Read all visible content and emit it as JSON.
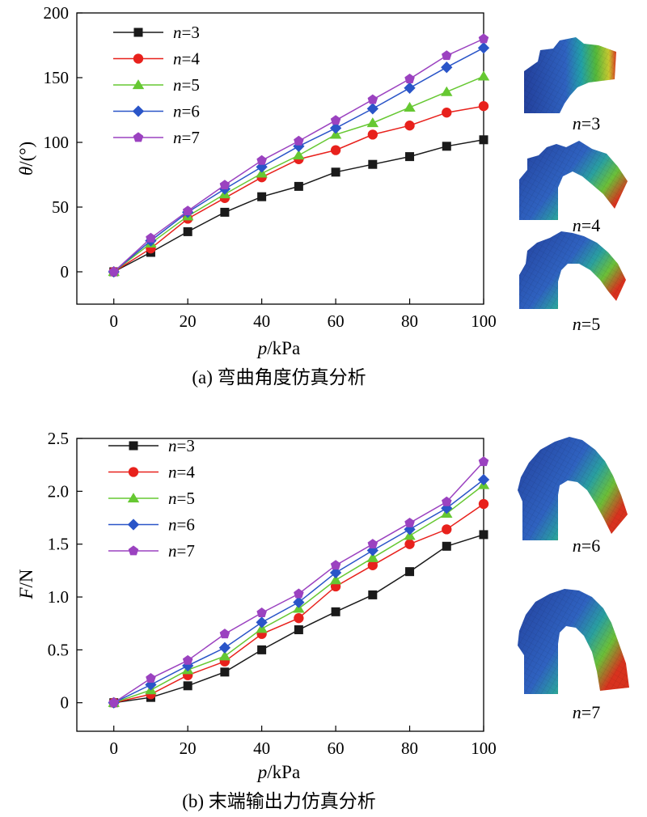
{
  "series_styles": [
    {
      "color": "#1a1a1a",
      "marker": "square"
    },
    {
      "color": "#e8211c",
      "marker": "circle"
    },
    {
      "color": "#66c832",
      "marker": "triangle"
    },
    {
      "color": "#2a55c8",
      "marker": "diamond"
    },
    {
      "color": "#9b42c0",
      "marker": "pentagon"
    }
  ],
  "chart_data": [
    {
      "type": "line",
      "caption": "(a) 弯曲角度仿真分析",
      "xlabel": {
        "italic": "p",
        "rest": "/kPa"
      },
      "ylabel": {
        "italic": "θ",
        "rest": "/(°)"
      },
      "xlim": [
        -10,
        100
      ],
      "ylim": [
        -25,
        200
      ],
      "xticks": [
        0,
        20,
        40,
        60,
        80,
        100
      ],
      "xtick_labels": [
        "0",
        "20",
        "40",
        "60",
        "80",
        "100"
      ],
      "yticks": [
        0,
        50,
        100,
        150,
        200
      ],
      "ytick_labels": [
        "0",
        "50",
        "100",
        "150",
        "200"
      ],
      "legend_position": "top-left",
      "x": [
        0,
        10,
        20,
        30,
        40,
        50,
        60,
        70,
        80,
        90,
        100
      ],
      "series": [
        {
          "name_italic": "n",
          "name_rest": "=3",
          "values": [
            0,
            15,
            31,
            46,
            58,
            66,
            77,
            83,
            89,
            97,
            102
          ]
        },
        {
          "name_italic": "n",
          "name_rest": "=4",
          "values": [
            0,
            18,
            41,
            57,
            73,
            87,
            94,
            106,
            113,
            123,
            128
          ]
        },
        {
          "name_italic": "n",
          "name_rest": "=5",
          "values": [
            0,
            22,
            43,
            60,
            76,
            90,
            106,
            115,
            127,
            139,
            151
          ]
        },
        {
          "name_italic": "n",
          "name_rest": "=6",
          "values": [
            0,
            24,
            46,
            64,
            81,
            97,
            111,
            126,
            142,
            158,
            173
          ]
        },
        {
          "name_italic": "n",
          "name_rest": "=7",
          "values": [
            0,
            26,
            47,
            67,
            86,
            101,
            117,
            133,
            149,
            167,
            180
          ]
        }
      ],
      "thumbnails": [
        {
          "label_italic": "n",
          "label_rest": "=3"
        },
        {
          "label_italic": "n",
          "label_rest": "=4"
        },
        {
          "label_italic": "n",
          "label_rest": "=5"
        }
      ]
    },
    {
      "type": "line",
      "caption": "(b) 末端输出力仿真分析",
      "xlabel": {
        "italic": "p",
        "rest": "/kPa"
      },
      "ylabel": {
        "italic": "F",
        "rest": "/N"
      },
      "xlim": [
        -10,
        100
      ],
      "ylim": [
        -0.27,
        2.5
      ],
      "xticks": [
        0,
        20,
        40,
        60,
        80,
        100
      ],
      "xtick_labels": [
        "0",
        "20",
        "40",
        "60",
        "80",
        "100"
      ],
      "yticks": [
        0,
        0.5,
        1.0,
        1.5,
        2.0,
        2.5
      ],
      "ytick_labels": [
        "0",
        "0.5",
        "1.0",
        "1.5",
        "2.0",
        "2.5"
      ],
      "legend_position": "top-left",
      "x": [
        0,
        10,
        20,
        30,
        40,
        50,
        60,
        70,
        80,
        90,
        100
      ],
      "series": [
        {
          "name_italic": "n",
          "name_rest": "=3",
          "values": [
            0,
            0.05,
            0.16,
            0.29,
            0.5,
            0.69,
            0.86,
            1.02,
            1.24,
            1.48,
            1.59
          ]
        },
        {
          "name_italic": "n",
          "name_rest": "=4",
          "values": [
            0,
            0.08,
            0.26,
            0.39,
            0.65,
            0.8,
            1.1,
            1.3,
            1.5,
            1.64,
            1.88
          ]
        },
        {
          "name_italic": "n",
          "name_rest": "=5",
          "values": [
            0,
            0.12,
            0.31,
            0.44,
            0.7,
            0.89,
            1.16,
            1.37,
            1.58,
            1.79,
            2.06
          ]
        },
        {
          "name_italic": "n",
          "name_rest": "=6",
          "values": [
            0,
            0.17,
            0.35,
            0.52,
            0.76,
            0.95,
            1.23,
            1.44,
            1.64,
            1.84,
            2.11
          ]
        },
        {
          "name_italic": "n",
          "name_rest": "=7",
          "values": [
            0,
            0.23,
            0.4,
            0.65,
            0.85,
            1.03,
            1.3,
            1.5,
            1.7,
            1.9,
            2.28
          ]
        }
      ],
      "thumbnails": [
        {
          "label_italic": "n",
          "label_rest": "=6"
        },
        {
          "label_italic": "n",
          "label_rest": "=7"
        }
      ]
    }
  ]
}
